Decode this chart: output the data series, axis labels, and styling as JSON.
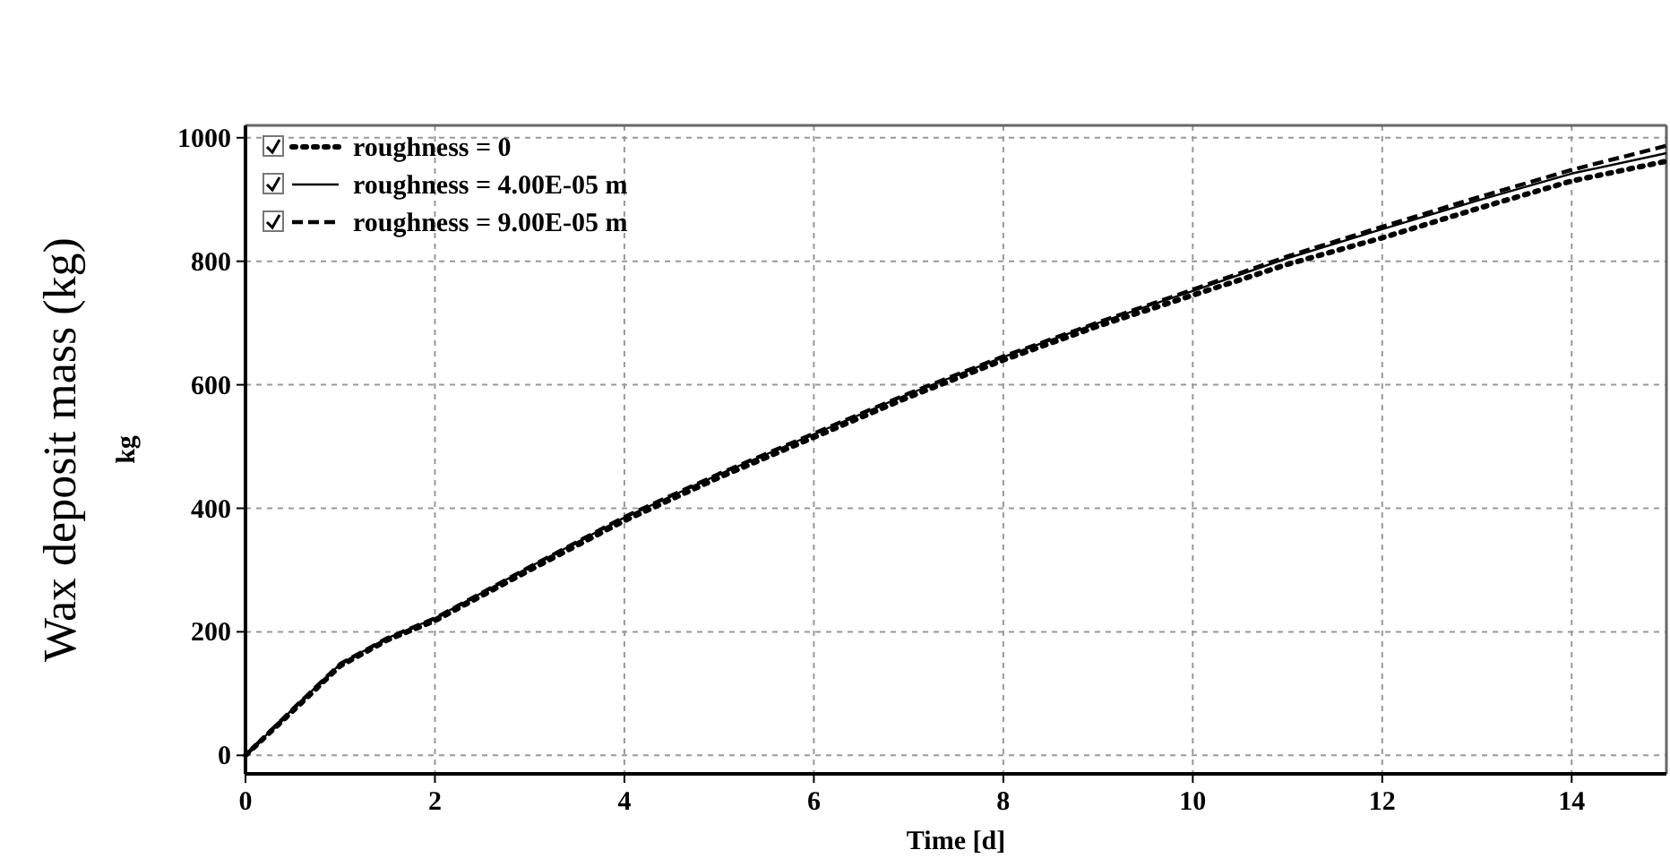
{
  "chart_data": {
    "type": "line",
    "xlabel": "Time [d]",
    "ylabel": "Wax deposit mass (kg)",
    "annotations": [
      "kg"
    ],
    "x": [
      0,
      0.5,
      1,
      1.5,
      2,
      3,
      4,
      5,
      6,
      7,
      8,
      9,
      10,
      11,
      12,
      13,
      14,
      15
    ],
    "xlim": [
      0,
      15
    ],
    "xticks": [
      0,
      2,
      4,
      6,
      8,
      10,
      12,
      14
    ],
    "ylim": [
      -30,
      1020
    ],
    "yticks": [
      0,
      200,
      400,
      600,
      800,
      1000
    ],
    "grid": true,
    "legend": "top left",
    "marker": "none",
    "series": [
      {
        "name": "roughness = 0",
        "color": "#000000",
        "line_style": "dotted",
        "values": [
          0,
          72,
          145,
          187,
          218,
          300,
          380,
          450,
          515,
          580,
          640,
          695,
          745,
          795,
          838,
          885,
          930,
          962
        ]
      },
      {
        "name": "roughness = 4.00E-05 m",
        "color": "#000000",
        "line_style": "solid",
        "values": [
          0,
          75,
          148,
          190,
          222,
          305,
          385,
          455,
          520,
          585,
          645,
          700,
          752,
          805,
          852,
          898,
          942,
          975
        ]
      },
      {
        "name": "roughness = 9.00E-05 m",
        "color": "#000000",
        "line_style": "dashed",
        "values": [
          0,
          75,
          148,
          190,
          222,
          305,
          386,
          456,
          521,
          586,
          646,
          701,
          754,
          808,
          856,
          903,
          948,
          987
        ]
      }
    ]
  }
}
